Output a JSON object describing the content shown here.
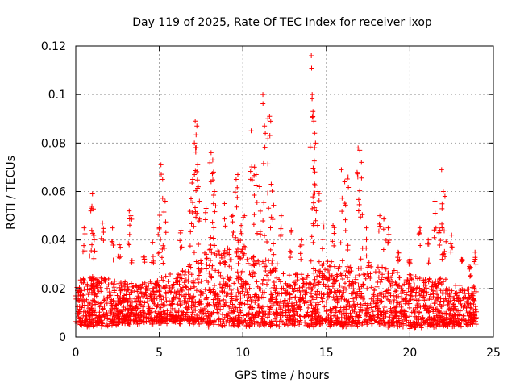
{
  "chart_data": {
    "type": "scatter",
    "title": "Day 119 of 2025, Rate Of TEC Index for receiver ixop",
    "xlabel": "GPS time / hours",
    "ylabel": "ROTI / TECUs",
    "xlim": [
      0,
      25
    ],
    "ylim": [
      0,
      0.12
    ],
    "x_ticks": [
      0,
      5,
      10,
      15,
      20,
      25
    ],
    "x_tick_labels": [
      "0",
      "5",
      "10",
      "15",
      "20",
      "25"
    ],
    "y_ticks": [
      0,
      0.02,
      0.04,
      0.06,
      0.08,
      0.1,
      0.12
    ],
    "y_tick_labels": [
      "0",
      "0.02",
      "0.04",
      "0.06",
      "0.08",
      "0.1",
      "0.12"
    ],
    "grid": true,
    "marker": "plus",
    "marker_color": "#ff0000",
    "series": [
      {
        "name": "ROTI",
        "x": [
          0.5,
          0.9,
          1.0,
          1.1,
          1.6,
          2.2,
          2.6,
          3.2,
          3.3,
          4.1,
          4.6,
          5.0,
          5.1,
          5.2,
          5.35,
          6.3,
          6.9,
          7.0,
          7.1,
          7.15,
          7.25,
          7.3,
          7.4,
          7.8,
          8.1,
          8.2,
          8.25,
          8.3,
          8.9,
          9.4,
          9.6,
          9.7,
          9.9,
          10.1,
          10.5,
          10.7,
          10.8,
          11.0,
          11.2,
          11.3,
          11.5,
          11.6,
          11.7,
          11.8,
          12.3,
          12.9,
          13.5,
          14.1,
          14.15,
          14.2,
          14.25,
          14.3,
          14.35,
          14.5,
          14.8,
          15.4,
          15.9,
          16.1,
          16.3,
          16.9,
          17.0,
          17.1,
          17.4,
          18.2,
          18.5,
          18.7,
          19.3,
          20.0,
          20.6,
          21.1,
          21.5,
          21.8,
          21.9,
          22.0,
          22.1,
          22.5,
          23.1,
          23.6,
          23.9
        ],
        "y": [
          0.045,
          0.052,
          0.059,
          0.042,
          0.047,
          0.045,
          0.038,
          0.052,
          0.05,
          0.033,
          0.039,
          0.045,
          0.071,
          0.065,
          0.056,
          0.044,
          0.057,
          0.065,
          0.08,
          0.089,
          0.087,
          0.071,
          0.056,
          0.053,
          0.076,
          0.073,
          0.068,
          0.06,
          0.055,
          0.05,
          0.065,
          0.067,
          0.046,
          0.05,
          0.085,
          0.07,
          0.067,
          0.062,
          0.1,
          0.087,
          0.09,
          0.091,
          0.063,
          0.061,
          0.05,
          0.044,
          0.04,
          0.116,
          0.1,
          0.093,
          0.089,
          0.084,
          0.08,
          0.06,
          0.047,
          0.046,
          0.069,
          0.064,
          0.066,
          0.078,
          0.077,
          0.072,
          0.045,
          0.05,
          0.049,
          0.045,
          0.035,
          0.032,
          0.045,
          0.04,
          0.056,
          0.044,
          0.069,
          0.06,
          0.058,
          0.042,
          0.032,
          0.025,
          0.035
        ]
      }
    ],
    "dense_band": {
      "hour_knots": [
        0,
        1,
        2,
        3,
        4,
        5,
        6,
        7,
        8,
        9,
        10,
        11,
        12,
        13,
        14,
        15,
        16,
        17,
        18,
        19,
        20,
        21,
        22,
        23,
        24
      ],
      "typical_min": [
        0.005,
        0.005,
        0.005,
        0.006,
        0.006,
        0.006,
        0.006,
        0.006,
        0.005,
        0.005,
        0.005,
        0.005,
        0.005,
        0.005,
        0.005,
        0.005,
        0.005,
        0.005,
        0.005,
        0.005,
        0.004,
        0.005,
        0.005,
        0.005,
        0.006
      ],
      "typical_max": [
        0.022,
        0.026,
        0.024,
        0.022,
        0.022,
        0.024,
        0.026,
        0.03,
        0.036,
        0.038,
        0.036,
        0.032,
        0.03,
        0.026,
        0.028,
        0.032,
        0.03,
        0.03,
        0.03,
        0.028,
        0.026,
        0.024,
        0.024,
        0.022,
        0.02
      ]
    }
  }
}
